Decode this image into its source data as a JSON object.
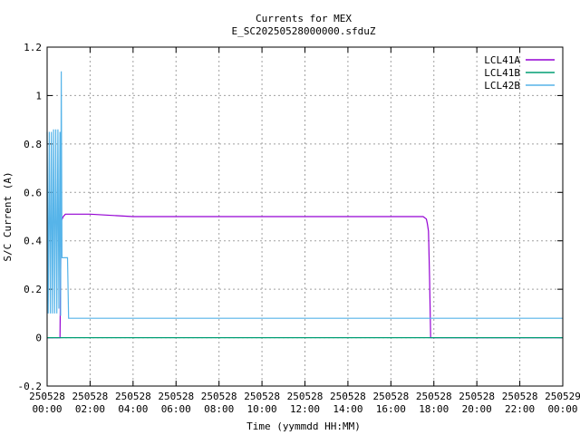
{
  "chart_data": {
    "type": "line",
    "title": "Currents for MEX",
    "subtitle": "E_SC20250528000000.sfduZ",
    "xlabel": "Time (yymmdd HH:MM)",
    "ylabel": "S/C Current (A)",
    "ylim": [
      -0.2,
      1.2
    ],
    "xlim_hours": [
      0,
      24
    ],
    "grid": true,
    "legend_position": "top-right",
    "y_ticks": [
      "-0.2",
      "0",
      "0.2",
      "0.4",
      "0.6",
      "0.8",
      "1",
      "1.2"
    ],
    "x_ticks": [
      {
        "date": "250528",
        "time": "00:00"
      },
      {
        "date": "250528",
        "time": "02:00"
      },
      {
        "date": "250528",
        "time": "04:00"
      },
      {
        "date": "250528",
        "time": "06:00"
      },
      {
        "date": "250528",
        "time": "08:00"
      },
      {
        "date": "250528",
        "time": "10:00"
      },
      {
        "date": "250528",
        "time": "12:00"
      },
      {
        "date": "250528",
        "time": "14:00"
      },
      {
        "date": "250528",
        "time": "16:00"
      },
      {
        "date": "250528",
        "time": "18:00"
      },
      {
        "date": "250528",
        "time": "20:00"
      },
      {
        "date": "250528",
        "time": "22:00"
      },
      {
        "date": "250529",
        "time": "00:00"
      }
    ],
    "series": [
      {
        "name": "LCL41A",
        "color": "#9400d3",
        "points": [
          [
            0,
            0
          ],
          [
            0.6,
            0
          ],
          [
            0.65,
            0.48
          ],
          [
            0.75,
            0.5
          ],
          [
            0.85,
            0.51
          ],
          [
            1,
            0.51
          ],
          [
            2,
            0.51
          ],
          [
            4,
            0.5
          ],
          [
            6,
            0.5
          ],
          [
            8,
            0.5
          ],
          [
            10,
            0.5
          ],
          [
            12,
            0.5
          ],
          [
            14,
            0.5
          ],
          [
            16,
            0.5
          ],
          [
            17.5,
            0.5
          ],
          [
            17.65,
            0.49
          ],
          [
            17.7,
            0.47
          ],
          [
            17.75,
            0.44
          ],
          [
            17.8,
            0.25
          ],
          [
            17.85,
            0
          ],
          [
            24,
            0
          ]
        ]
      },
      {
        "name": "LCL41B",
        "color": "#009e73",
        "points": [
          [
            0,
            0
          ],
          [
            24,
            0
          ]
        ]
      },
      {
        "name": "LCL42B",
        "color": "#56b4e9",
        "points": [
          [
            0,
            0.85
          ],
          [
            0.05,
            0.1
          ],
          [
            0.1,
            0.85
          ],
          [
            0.15,
            0.1
          ],
          [
            0.2,
            0.85
          ],
          [
            0.25,
            0.1
          ],
          [
            0.3,
            0.86
          ],
          [
            0.35,
            0.1
          ],
          [
            0.4,
            0.86
          ],
          [
            0.45,
            0.1
          ],
          [
            0.5,
            0.86
          ],
          [
            0.55,
            0.12
          ],
          [
            0.6,
            0.85
          ],
          [
            0.63,
            0.09
          ],
          [
            0.66,
            1.1
          ],
          [
            0.69,
            0.33
          ],
          [
            0.95,
            0.33
          ],
          [
            1.0,
            0.08
          ],
          [
            24,
            0.08
          ]
        ]
      }
    ]
  }
}
